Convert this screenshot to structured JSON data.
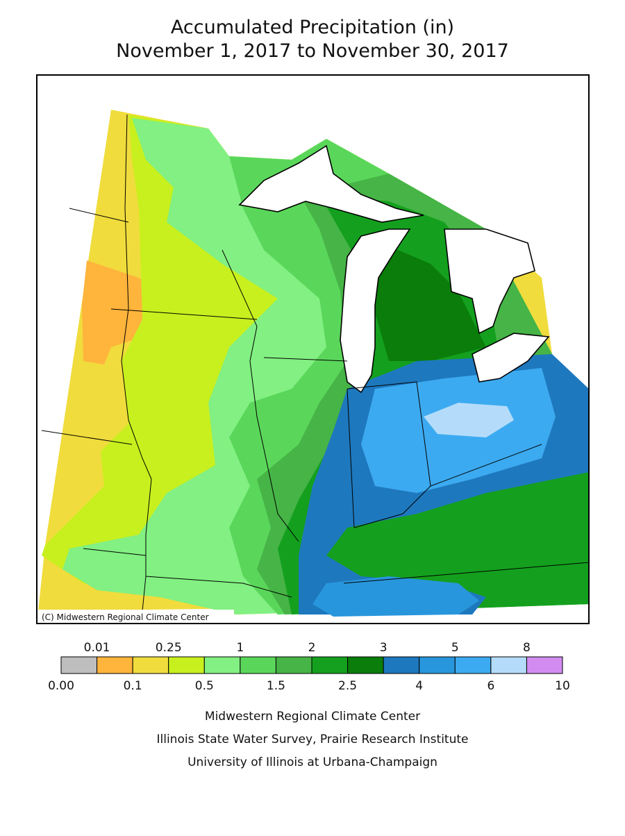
{
  "header": {
    "title": "Accumulated Precipitation (in)",
    "subtitle": "November 1, 2017 to November 30, 2017"
  },
  "map": {
    "copyright": "(C) Midwestern Regional Climate Center"
  },
  "legend": {
    "labels": [
      "0.00",
      "0.01",
      "0.1",
      "0.25",
      "0.5",
      "1",
      "1.5",
      "2",
      "2.5",
      "3",
      "4",
      "5",
      "6",
      "8",
      "10"
    ],
    "colors": [
      "#bebebe",
      "#ffb43c",
      "#f0dc3c",
      "#c8f01e",
      "#82f082",
      "#5ad75a",
      "#46b446",
      "#14a01e",
      "#0a7d0a",
      "#1e78be",
      "#2896dc",
      "#3caaf0",
      "#b4dcfa",
      "#d28cf0"
    ]
  },
  "credits": [
    "Midwestern Regional Climate Center",
    "Illinois State Water Survey, Prairie Research Institute",
    "University of Illinois at Urbana-Champaign"
  ]
}
